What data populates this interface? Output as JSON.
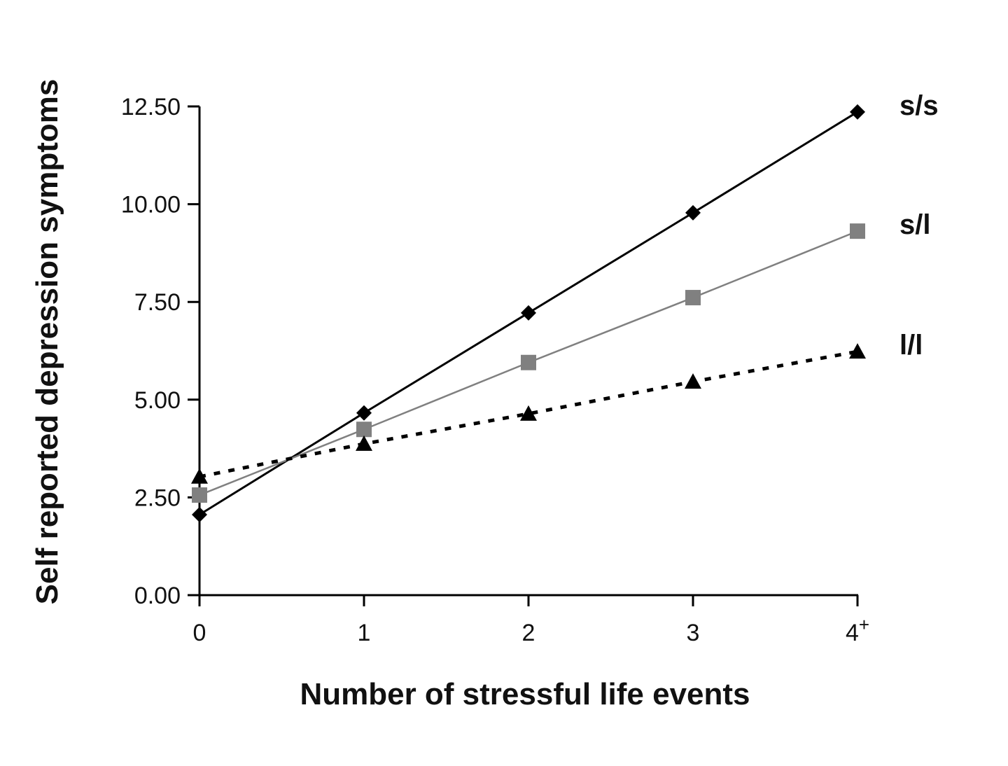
{
  "chart_data": {
    "type": "line",
    "xlabel": "Number of stressful life events",
    "ylabel": "Self reported depression symptoms",
    "categories": [
      "0",
      "1",
      "2",
      "3",
      "4+"
    ],
    "x_tick_labels": [
      {
        "main": "0",
        "sup": ""
      },
      {
        "main": "1",
        "sup": ""
      },
      {
        "main": "2",
        "sup": ""
      },
      {
        "main": "3",
        "sup": ""
      },
      {
        "main": "4",
        "sup": "+"
      }
    ],
    "y_tick_labels": [
      "0.00",
      "2.50",
      "5.00",
      "7.50",
      "10.00",
      "12.50"
    ],
    "ylim": [
      0,
      12.5
    ],
    "grid": false,
    "legend": "inline labels at right end of each line",
    "series": [
      {
        "name": "s/s",
        "values": [
          2.06,
          4.66,
          7.22,
          9.78,
          12.36
        ],
        "color": "#000000",
        "marker": "diamond",
        "line": "solid"
      },
      {
        "name": "s/l",
        "values": [
          2.56,
          4.24,
          5.95,
          7.61,
          9.31
        ],
        "color": "#808080",
        "marker": "square",
        "line": "solid"
      },
      {
        "name": "l/l",
        "values": [
          3.03,
          3.87,
          4.64,
          5.46,
          6.23
        ],
        "color": "#000000",
        "marker": "triangle",
        "line": "dotted"
      }
    ]
  }
}
